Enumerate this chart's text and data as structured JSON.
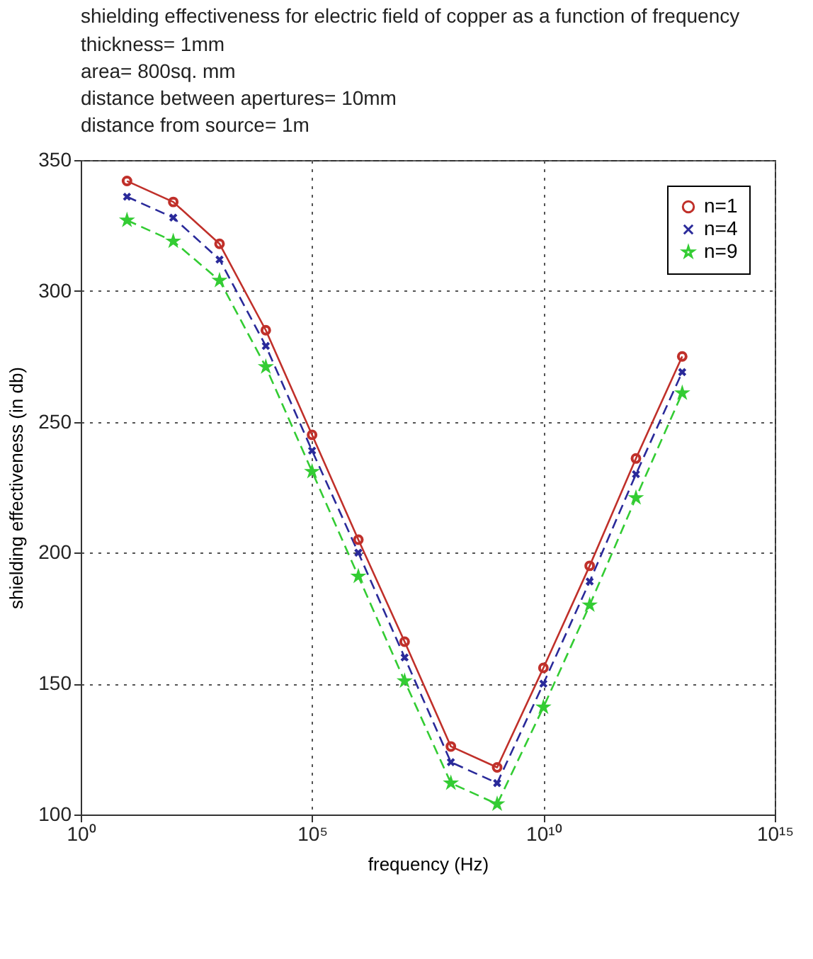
{
  "chart_data": {
    "type": "line",
    "title": "shielding effectiveness for electric field of copper as a function of frequency",
    "subtitle": "thickness= 1mm\narea= 800sq. mm\ndistance between apertures= 10mm\ndistance from source= 1m",
    "xlabel": "frequency (Hz)",
    "ylabel": "shielding effectiveness (in db)",
    "x": [
      10,
      100,
      1000,
      10000,
      100000,
      1000000,
      10000000,
      100000000,
      1000000000,
      10000000000,
      100000000000,
      1000000000000,
      10000000000000
    ],
    "series": [
      {
        "name": "n=1",
        "color": "#c0302a",
        "marker": "circle",
        "line_style": "solid",
        "values": [
          342,
          334,
          318,
          285,
          245,
          205,
          166,
          126,
          118,
          156,
          195,
          236,
          275
        ]
      },
      {
        "name": "n=4",
        "color": "#2a2a9a",
        "marker": "cross",
        "line_style": "dashed",
        "values": [
          336,
          328,
          312,
          279,
          239,
          200,
          160,
          120,
          112,
          150,
          189,
          230,
          269
        ]
      },
      {
        "name": "n=9",
        "color": "#33cc33",
        "marker": "star",
        "line_style": "dashed",
        "values": [
          327,
          319,
          304,
          271,
          231,
          191,
          151,
          112,
          104,
          141,
          180,
          221,
          261
        ]
      }
    ],
    "log": "x",
    "xlim": [
      1,
      1000000000000000
    ],
    "xticks": [
      {
        "value": 1,
        "label": "10⁰"
      },
      {
        "value": 100000,
        "label": "10⁵"
      },
      {
        "value": 10000000000,
        "label": "10¹⁰"
      },
      {
        "value": 1000000000000000,
        "label": "10¹⁵"
      }
    ],
    "ylim": [
      100,
      350
    ],
    "yticks": [
      100,
      150,
      200,
      250,
      300,
      350
    ],
    "grid": true,
    "legend": "top right"
  }
}
